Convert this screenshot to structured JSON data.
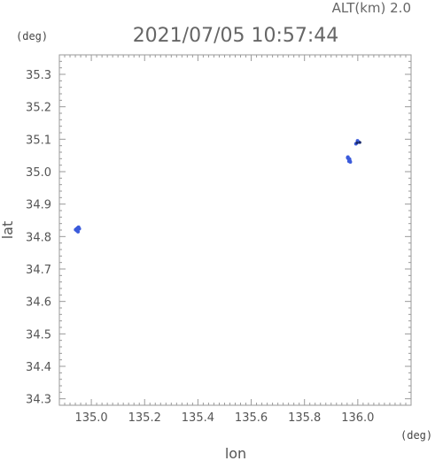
{
  "header": {
    "altitude_label": "ALT(km) 2.0",
    "timestamp": "2021/07/05 10:57:44"
  },
  "chart_data": {
    "type": "scatter",
    "title": "2021/07/05 10:57:44",
    "xlabel": "lon",
    "ylabel": "lat",
    "x_unit": "(deg)",
    "y_unit": "(deg)",
    "xlim": [
      134.88,
      136.2
    ],
    "ylim": [
      34.28,
      35.36
    ],
    "x_major_ticks": [
      135.0,
      135.2,
      135.4,
      135.6,
      135.8,
      136.0
    ],
    "x_tick_labels": [
      "135.0",
      "135.2",
      "135.4",
      "135.6",
      "135.8",
      "136.0"
    ],
    "y_major_ticks": [
      34.3,
      34.4,
      34.5,
      34.6,
      34.7,
      34.8,
      34.9,
      35.0,
      35.1,
      35.2,
      35.3
    ],
    "y_tick_labels": [
      "34.3",
      "34.4",
      "34.5",
      "34.6",
      "34.7",
      "34.8",
      "34.9",
      "35.0",
      "35.1",
      "35.2",
      "35.3"
    ],
    "minor_tick_step": 0.02,
    "grid": false,
    "point_color": "#3b5bdb",
    "dark_point_color": "#1a2a6c",
    "points": [
      {
        "x": 134.944,
        "y": 34.823
      },
      {
        "x": 134.948,
        "y": 34.826
      },
      {
        "x": 134.952,
        "y": 34.829
      },
      {
        "x": 134.946,
        "y": 34.818
      },
      {
        "x": 134.95,
        "y": 34.815
      },
      {
        "x": 134.941,
        "y": 34.821
      },
      {
        "x": 134.955,
        "y": 34.824
      },
      {
        "x": 135.962,
        "y": 35.043
      },
      {
        "x": 135.965,
        "y": 35.04
      },
      {
        "x": 135.968,
        "y": 35.037
      },
      {
        "x": 135.967,
        "y": 35.032
      },
      {
        "x": 135.97,
        "y": 35.034
      },
      {
        "x": 135.963,
        "y": 35.045
      },
      {
        "x": 135.969,
        "y": 35.039
      },
      {
        "x": 135.972,
        "y": 35.03
      },
      {
        "x": 135.993,
        "y": 35.086
      },
      {
        "x": 136.003,
        "y": 35.091
      },
      {
        "x": 135.999,
        "y": 35.095
      }
    ],
    "dark_points": [
      {
        "x": 135.997,
        "y": 35.089
      },
      {
        "x": 136.008,
        "y": 35.09
      }
    ]
  }
}
